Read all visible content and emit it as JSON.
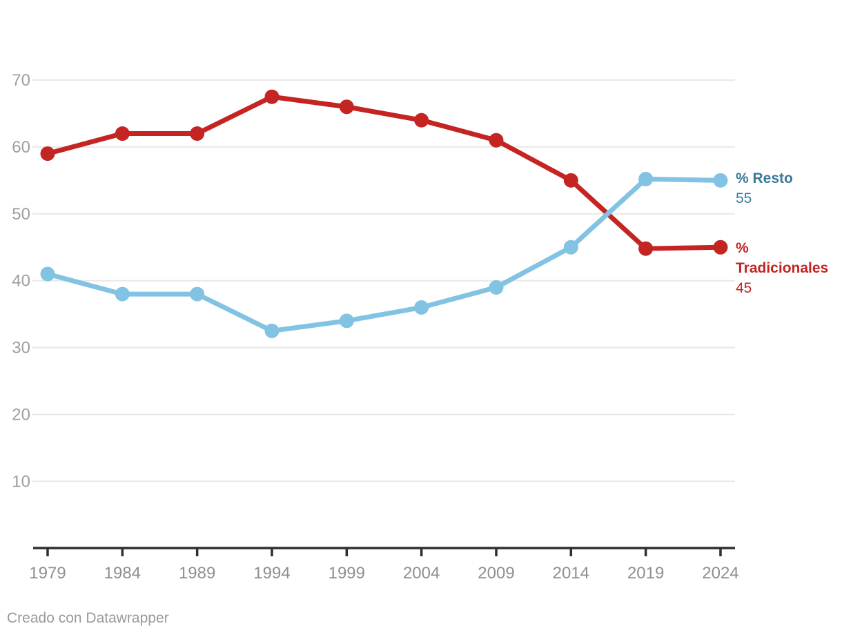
{
  "chart_data": {
    "type": "line",
    "x": [
      1979,
      1984,
      1989,
      1994,
      1999,
      2004,
      2009,
      2014,
      2019,
      2024
    ],
    "series": [
      {
        "name": "% Tradicionales",
        "values": [
          59,
          62,
          62,
          67.5,
          66,
          64,
          61,
          55,
          44.8,
          45
        ],
        "color": "#c42523",
        "label_color": "#c22422",
        "end_value_label": "45"
      },
      {
        "name": "% Resto",
        "values": [
          41,
          38,
          38,
          32.5,
          34,
          36,
          39,
          45,
          55.2,
          55
        ],
        "color": "#82c3e3",
        "label_color": "#3a7a98",
        "end_value_label": "55"
      }
    ],
    "ylim": [
      0,
      70
    ],
    "yticks": [
      10,
      20,
      30,
      40,
      50,
      60,
      70
    ],
    "xticks": [
      1979,
      1984,
      1989,
      1994,
      1999,
      2004,
      2009,
      2014,
      2019,
      2024
    ],
    "grid": true,
    "legend_position": "direct-labels-right"
  },
  "footer": {
    "attribution": "Creado con Datawrapper"
  },
  "colors": {
    "background": "#ffffff",
    "grid": "#e8e8e8",
    "axis": "#2f2f2f",
    "x_tick_label": "#8f8f8f",
    "y_tick_label": "#9e9e9e",
    "attribution": "#9a9a9a"
  }
}
